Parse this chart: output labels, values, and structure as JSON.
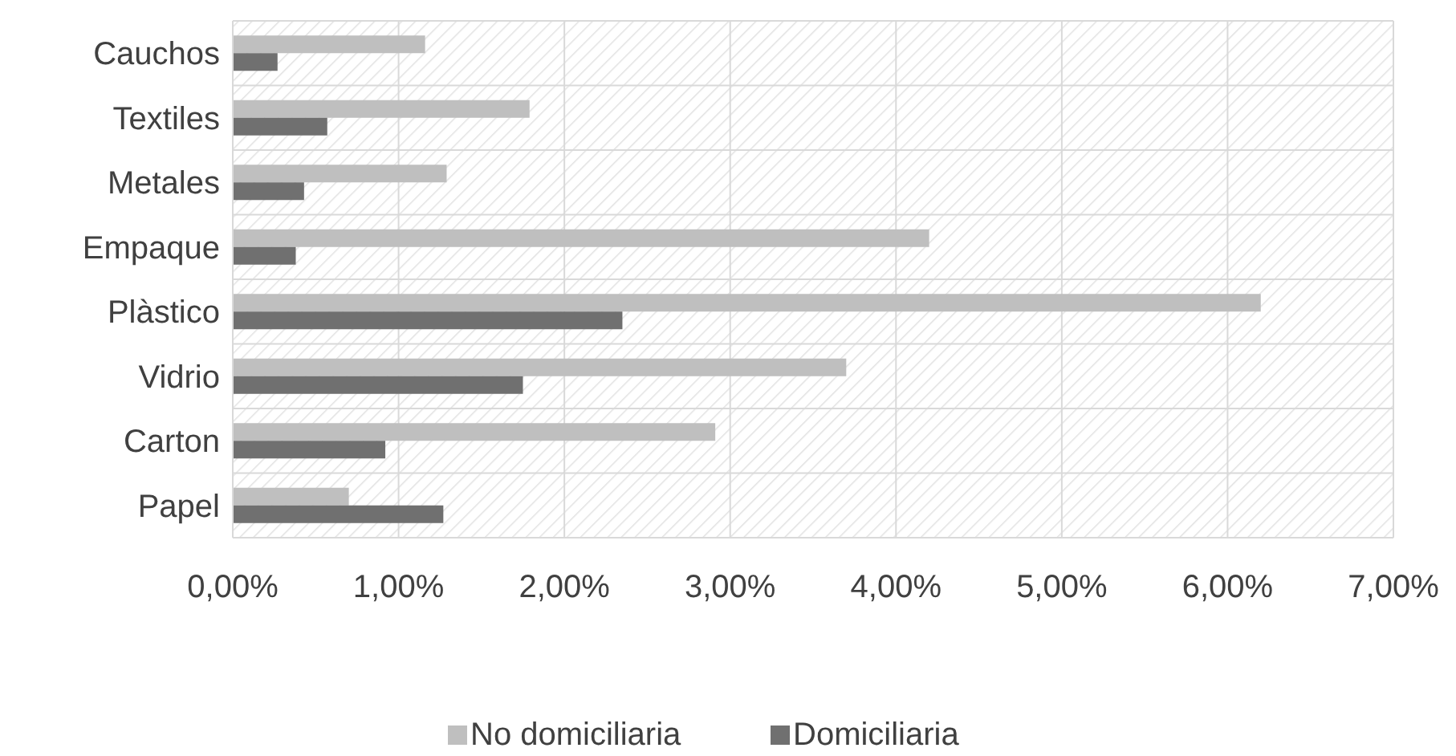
{
  "chart_data": {
    "type": "bar",
    "orientation": "horizontal",
    "categories": [
      "Cauchos",
      "Textiles",
      "Metales",
      "Empaque",
      "Plàstico",
      "Vidrio",
      "Carton",
      "Papel"
    ],
    "series": [
      {
        "name": "No domiciliaria",
        "color": "#bfbfbf",
        "values": [
          1.16,
          1.79,
          1.29,
          4.2,
          6.2,
          3.7,
          2.91,
          0.7
        ]
      },
      {
        "name": "Domiciliaria",
        "color": "#707070",
        "values": [
          0.27,
          0.57,
          0.43,
          0.38,
          2.35,
          1.75,
          0.92,
          1.27
        ]
      }
    ],
    "xlim": [
      0,
      7
    ],
    "xticks": [
      {
        "value": 0,
        "label": "0,00%"
      },
      {
        "value": 1,
        "label": "1,00%"
      },
      {
        "value": 2,
        "label": "2,00%"
      },
      {
        "value": 3,
        "label": "3,00%"
      },
      {
        "value": 4,
        "label": "4,00%"
      },
      {
        "value": 5,
        "label": "5,00%"
      },
      {
        "value": 6,
        "label": "6,00%"
      },
      {
        "value": 7,
        "label": "7,00%"
      }
    ],
    "grid": true,
    "legend": "bottom"
  }
}
